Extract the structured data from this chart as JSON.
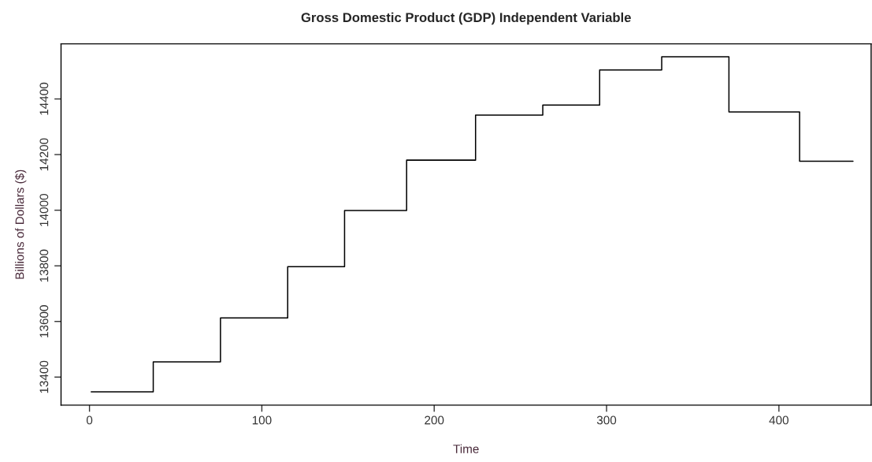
{
  "chart_data": {
    "type": "step",
    "title": "Gross Domestic Product (GDP) Independent Variable",
    "xlabel": "Time",
    "ylabel": "Billions of Dollars ($)",
    "x": [
      1,
      37,
      76,
      115,
      148,
      184,
      224,
      263,
      296,
      332,
      371,
      412,
      443
    ],
    "series": [
      {
        "color": "#000000",
        "values": [
          13347,
          13455,
          13613,
          13797,
          13999,
          14180,
          14342,
          14378,
          14504,
          14552,
          14353,
          14176,
          14176
        ]
      }
    ],
    "xlim": [
      -16.5,
      453.5
    ],
    "xticks": [
      0,
      100,
      200,
      300,
      400
    ],
    "ylim": [
      13299,
      14598
    ],
    "yticks": [
      13400,
      13600,
      13800,
      14000,
      14200,
      14400
    ],
    "grid": false,
    "legend": false
  }
}
